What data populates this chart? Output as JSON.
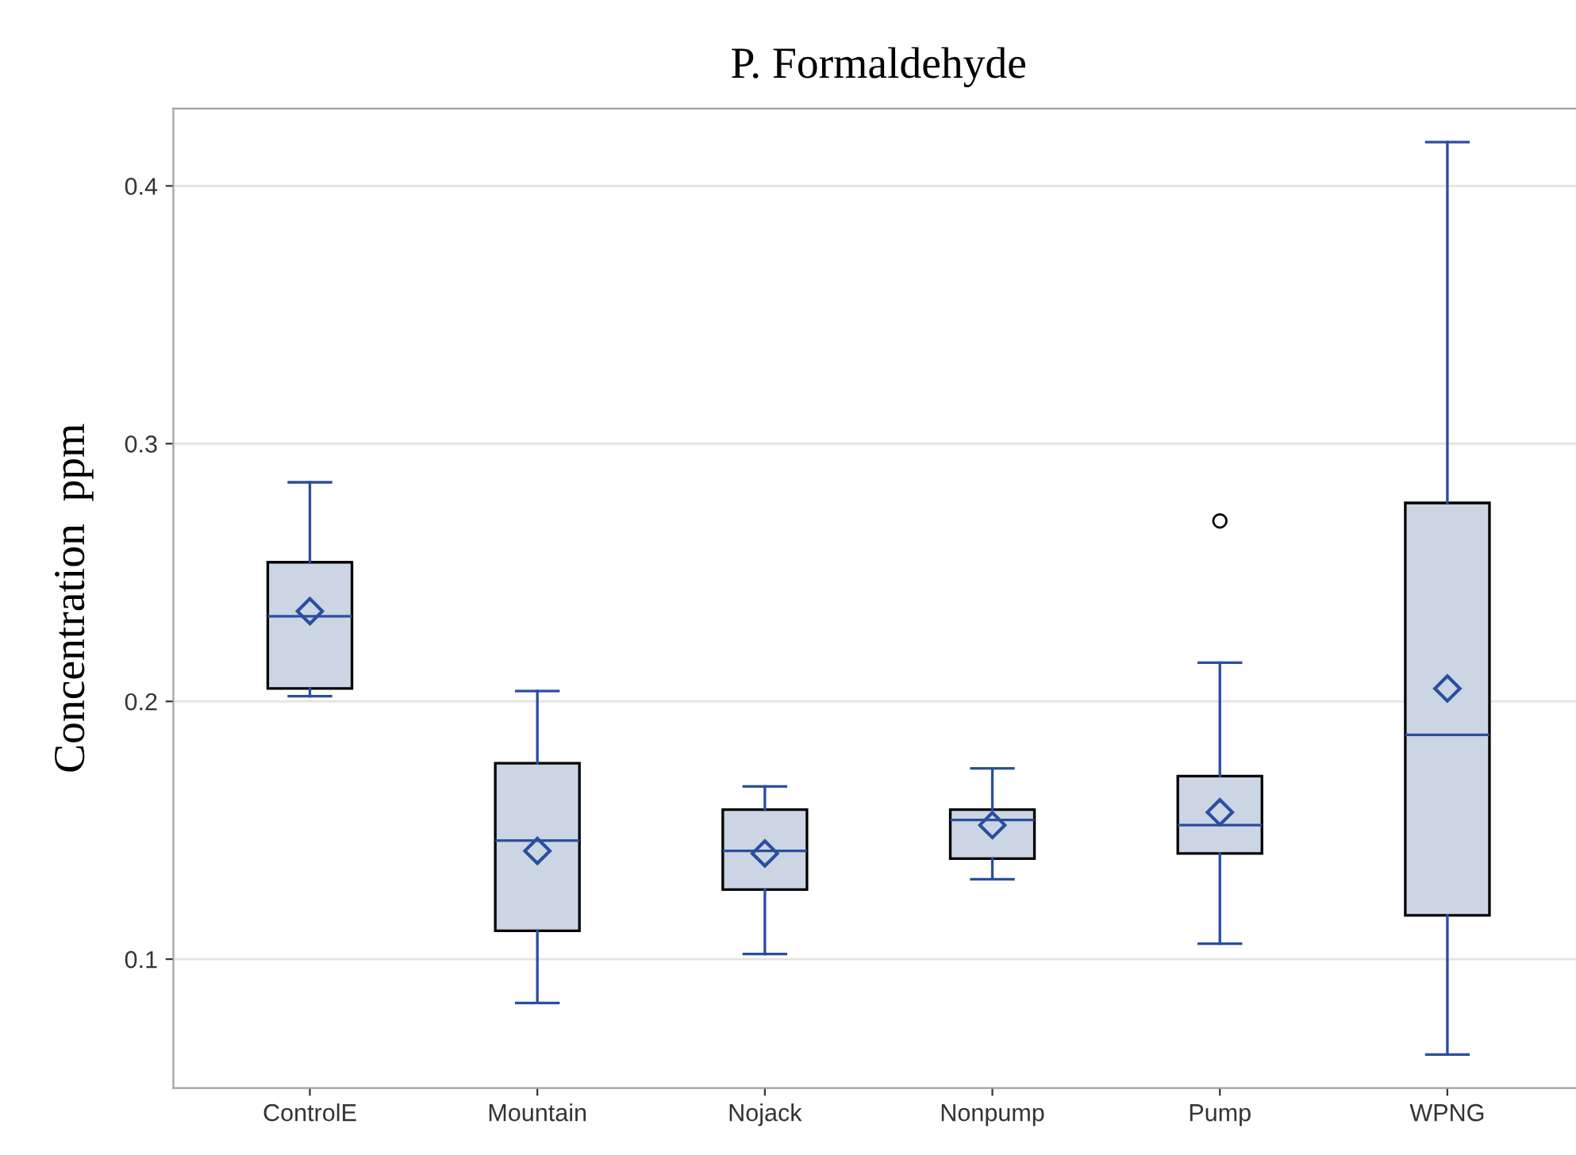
{
  "chart_data": {
    "type": "box",
    "title": "P. Formaldehyde",
    "ylabel": "Concentration  ppm",
    "categories": [
      "ControlE",
      "Mountain",
      "Nojack",
      "Nonpump",
      "Pump",
      "WPNG"
    ],
    "ylim": [
      0.05,
      0.43
    ],
    "yticks": [
      0.1,
      0.2,
      0.3,
      0.4
    ],
    "grid": "y",
    "marker": "diamond",
    "series": [
      {
        "color": "#cbd5e3",
        "boxes": [
          {
            "low": 0.202,
            "q1": 0.205,
            "median": 0.233,
            "q3": 0.254,
            "high": 0.285,
            "mean": 0.235
          },
          {
            "low": 0.083,
            "q1": 0.111,
            "median": 0.146,
            "q3": 0.176,
            "high": 0.204,
            "mean": 0.142
          },
          {
            "low": 0.102,
            "q1": 0.127,
            "median": 0.142,
            "q3": 0.158,
            "high": 0.167,
            "mean": 0.141
          },
          {
            "low": 0.131,
            "q1": 0.139,
            "median": 0.154,
            "q3": 0.158,
            "high": 0.174,
            "mean": 0.152
          },
          {
            "low": 0.106,
            "q1": 0.141,
            "median": 0.152,
            "q3": 0.171,
            "high": 0.215,
            "mean": 0.157,
            "outliers": [
              0.27
            ]
          },
          {
            "low": 0.063,
            "q1": 0.117,
            "median": 0.187,
            "q3": 0.277,
            "high": 0.417,
            "mean": 0.205
          }
        ]
      }
    ]
  }
}
